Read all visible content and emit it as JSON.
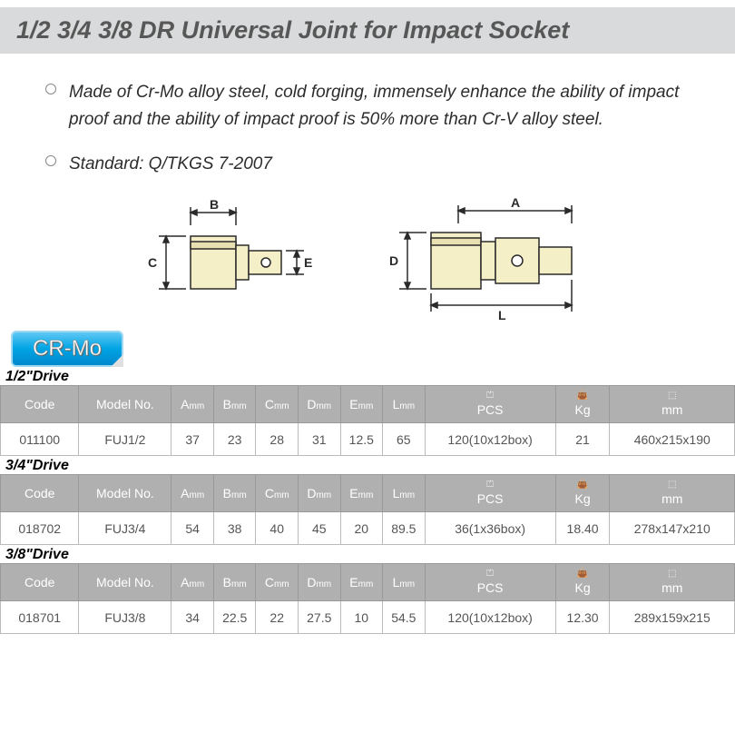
{
  "title": "1/2  3/4  3/8  DR Universal Joint for Impact Socket",
  "bullets": [
    "Made of Cr-Mo alloy steel, cold forging, immensely enhance the ability of impact proof and the ability of impact proof is 50% more than Cr-V alloy steel.",
    "Standard: Q/TKGS 7-2007"
  ],
  "badge": "CR-Mo",
  "diagram": {
    "left": {
      "labels": [
        "B",
        "C",
        "E"
      ],
      "body_fill": "#f5efc8",
      "stroke": "#2a2a2a"
    },
    "right": {
      "labels": [
        "A",
        "D",
        "L"
      ],
      "body_fill": "#f5efc8",
      "stroke": "#2a2a2a"
    }
  },
  "table_headers": {
    "code": "Code",
    "model": "Model No.",
    "A": "A",
    "B": "B",
    "C": "C",
    "D": "D",
    "E": "E",
    "L": "L",
    "dim_sub": "mm",
    "pcs": "PCS",
    "kg": "Kg",
    "box": "mm"
  },
  "sections": [
    {
      "label": "1/2\"Drive",
      "row": {
        "code": "011100",
        "model": "FUJ1/2",
        "A": "37",
        "B": "23",
        "C": "28",
        "D": "31",
        "E": "12.5",
        "L": "65",
        "pcs": "120(10x12box)",
        "kg": "21",
        "box": "460x215x190"
      }
    },
    {
      "label": "3/4\"Drive",
      "row": {
        "code": "018702",
        "model": "FUJ3/4",
        "A": "54",
        "B": "38",
        "C": "40",
        "D": "45",
        "E": "20",
        "L": "89.5",
        "pcs": "36(1x36box)",
        "kg": "18.40",
        "box": "278x147x210"
      }
    },
    {
      "label": "3/8\"Drive",
      "row": {
        "code": "018701",
        "model": "FUJ3/8",
        "A": "34",
        "B": "22.5",
        "C": "22",
        "D": "27.5",
        "E": "10",
        "L": "54.5",
        "pcs": "120(10x12box)",
        "kg": "12.30",
        "box": "289x159x215"
      }
    }
  ],
  "colors": {
    "title_bg": "#d9dadb",
    "title_text": "#575757",
    "header_bg": "#b0b0b0",
    "header_text": "#ffffff",
    "cell_text": "#555555",
    "border": "#bbbbbb"
  }
}
